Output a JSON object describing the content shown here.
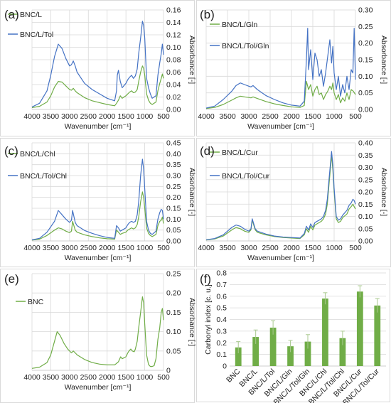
{
  "colors": {
    "green": "#70ad47",
    "blue": "#4472c4",
    "grid": "#d9d9d9"
  },
  "chart_data": [
    {
      "type": "line",
      "panel_label": "(a)",
      "xlabel": "Wavenumber [cm⁻¹]",
      "ylabel": "Absorbance [-]",
      "xlim": [
        4000,
        500
      ],
      "ylim": [
        0,
        0.16
      ],
      "xticks": [
        "4000",
        "3500",
        "3000",
        "2500",
        "2000",
        "1500",
        "1000",
        "500"
      ],
      "yticks": [
        "0.00",
        "0.02",
        "0.04",
        "0.06",
        "0.08",
        "0.10",
        "0.12",
        "0.14",
        "0.16"
      ],
      "series": [
        {
          "name": "BNC/L",
          "color": "#70ad47",
          "x": [
            4000,
            3800,
            3600,
            3500,
            3400,
            3300,
            3200,
            3100,
            3000,
            2950,
            2900,
            2850,
            2800,
            2600,
            2400,
            2200,
            2000,
            1800,
            1750,
            1700,
            1650,
            1600,
            1500,
            1450,
            1400,
            1350,
            1300,
            1250,
            1200,
            1160,
            1110,
            1060,
            1030,
            1000,
            950,
            900,
            850,
            800,
            700,
            650,
            600,
            560,
            530,
            500
          ],
          "y": [
            0.003,
            0.005,
            0.012,
            0.022,
            0.036,
            0.045,
            0.044,
            0.038,
            0.032,
            0.031,
            0.034,
            0.03,
            0.027,
            0.019,
            0.014,
            0.011,
            0.008,
            0.006,
            0.01,
            0.015,
            0.022,
            0.018,
            0.022,
            0.025,
            0.028,
            0.03,
            0.027,
            0.028,
            0.032,
            0.045,
            0.06,
            0.07,
            0.066,
            0.055,
            0.025,
            0.015,
            0.01,
            0.008,
            0.012,
            0.03,
            0.042,
            0.05,
            0.057,
            0.05
          ]
        },
        {
          "name": "BNC/L/Tol",
          "color": "#4472c4",
          "x": [
            4000,
            3800,
            3600,
            3500,
            3400,
            3300,
            3200,
            3100,
            3000,
            2950,
            2900,
            2850,
            2800,
            2600,
            2400,
            2200,
            2000,
            1800,
            1750,
            1730,
            1700,
            1650,
            1600,
            1500,
            1450,
            1400,
            1350,
            1300,
            1250,
            1200,
            1160,
            1110,
            1060,
            1030,
            1000,
            950,
            900,
            850,
            800,
            700,
            650,
            600,
            560,
            530,
            500
          ],
          "y": [
            0.004,
            0.01,
            0.03,
            0.055,
            0.085,
            0.105,
            0.098,
            0.082,
            0.07,
            0.072,
            0.078,
            0.07,
            0.06,
            0.042,
            0.032,
            0.025,
            0.018,
            0.014,
            0.03,
            0.055,
            0.063,
            0.045,
            0.035,
            0.042,
            0.048,
            0.052,
            0.055,
            0.05,
            0.054,
            0.065,
            0.09,
            0.115,
            0.142,
            0.135,
            0.115,
            0.05,
            0.035,
            0.025,
            0.018,
            0.022,
            0.055,
            0.075,
            0.09,
            0.105,
            0.088
          ]
        }
      ]
    },
    {
      "type": "line",
      "panel_label": "(b)",
      "xlabel": "Wavenumber [cm⁻¹]",
      "ylabel": "Absorbance [-]",
      "xlim": [
        4000,
        500
      ],
      "ylim": [
        0,
        0.3
      ],
      "xticks": [
        "4000",
        "3500",
        "3000",
        "2500",
        "2000",
        "1500",
        "1000",
        "500"
      ],
      "yticks": [
        "0.00",
        "0.05",
        "0.10",
        "0.15",
        "0.20",
        "0.25",
        "0.30"
      ],
      "series": [
        {
          "name": "BNC/L/Gln",
          "color": "#70ad47",
          "x": [
            4000,
            3800,
            3600,
            3400,
            3300,
            3200,
            3100,
            3000,
            2950,
            2900,
            2800,
            2600,
            2400,
            2200,
            2000,
            1800,
            1700,
            1650,
            1600,
            1550,
            1500,
            1450,
            1400,
            1350,
            1300,
            1250,
            1200,
            1150,
            1100,
            1060,
            1030,
            1000,
            950,
            900,
            850,
            800,
            750,
            700,
            650,
            600,
            550,
            500
          ],
          "y": [
            0.003,
            0.006,
            0.015,
            0.028,
            0.035,
            0.04,
            0.038,
            0.036,
            0.035,
            0.038,
            0.033,
            0.024,
            0.017,
            0.012,
            0.008,
            0.006,
            0.012,
            0.085,
            0.06,
            0.075,
            0.04,
            0.06,
            0.07,
            0.045,
            0.05,
            0.03,
            0.045,
            0.055,
            0.07,
            0.06,
            0.08,
            0.05,
            0.03,
            0.045,
            0.02,
            0.035,
            0.025,
            0.05,
            0.03,
            0.06,
            0.055,
            0.045
          ]
        },
        {
          "name": "BNC/L/Tol/Gln",
          "color": "#4472c4",
          "x": [
            4000,
            3800,
            3600,
            3400,
            3300,
            3200,
            3100,
            3000,
            2950,
            2900,
            2800,
            2600,
            2400,
            2200,
            2000,
            1800,
            1700,
            1650,
            1620,
            1600,
            1550,
            1500,
            1450,
            1400,
            1350,
            1300,
            1250,
            1200,
            1150,
            1100,
            1060,
            1030,
            1000,
            950,
            900,
            850,
            800,
            750,
            700,
            650,
            600,
            560,
            530,
            500
          ],
          "y": [
            0.004,
            0.01,
            0.03,
            0.055,
            0.072,
            0.08,
            0.075,
            0.07,
            0.068,
            0.072,
            0.06,
            0.042,
            0.03,
            0.02,
            0.013,
            0.01,
            0.025,
            0.15,
            0.245,
            0.12,
            0.18,
            0.09,
            0.17,
            0.15,
            0.1,
            0.12,
            0.07,
            0.11,
            0.16,
            0.21,
            0.14,
            0.19,
            0.11,
            0.06,
            0.1,
            0.04,
            0.075,
            0.05,
            0.1,
            0.06,
            0.12,
            0.11,
            0.245,
            0.09
          ]
        }
      ]
    },
    {
      "type": "line",
      "panel_label": "(c)",
      "xlabel": "Wavenumber [cm⁻¹]",
      "ylabel": "Absorbance [-]",
      "xlim": [
        4000,
        500
      ],
      "ylim": [
        0,
        0.45
      ],
      "xticks": [
        "4000",
        "3500",
        "3000",
        "2500",
        "2000",
        "1500",
        "1000",
        "500"
      ],
      "yticks": [
        "0.00",
        "0.05",
        "0.10",
        "0.15",
        "0.20",
        "0.25",
        "0.30",
        "0.35",
        "0.40",
        "0.45"
      ],
      "series": [
        {
          "name": "BNC/L/Chl",
          "color": "#70ad47",
          "x": [
            4000,
            3800,
            3600,
            3400,
            3300,
            3200,
            3100,
            3000,
            2950,
            2920,
            2850,
            2800,
            2600,
            2400,
            2200,
            2000,
            1800,
            1750,
            1700,
            1650,
            1600,
            1500,
            1450,
            1400,
            1350,
            1300,
            1250,
            1200,
            1160,
            1110,
            1060,
            1030,
            1000,
            950,
            900,
            850,
            800,
            700,
            650,
            600,
            560,
            530,
            500
          ],
          "y": [
            0.004,
            0.008,
            0.025,
            0.05,
            0.06,
            0.055,
            0.045,
            0.038,
            0.045,
            0.09,
            0.05,
            0.04,
            0.028,
            0.02,
            0.014,
            0.01,
            0.008,
            0.05,
            0.04,
            0.03,
            0.035,
            0.04,
            0.05,
            0.055,
            0.06,
            0.055,
            0.06,
            0.075,
            0.11,
            0.18,
            0.225,
            0.2,
            0.15,
            0.06,
            0.035,
            0.025,
            0.02,
            0.03,
            0.07,
            0.09,
            0.095,
            0.11,
            0.08
          ]
        },
        {
          "name": "BNC/L/Tol/Chl",
          "color": "#4472c4",
          "x": [
            4000,
            3800,
            3600,
            3400,
            3300,
            3200,
            3100,
            3000,
            2950,
            2920,
            2850,
            2800,
            2600,
            2400,
            2200,
            2000,
            1800,
            1750,
            1700,
            1650,
            1600,
            1500,
            1450,
            1400,
            1350,
            1300,
            1250,
            1200,
            1160,
            1110,
            1060,
            1030,
            1000,
            950,
            900,
            850,
            800,
            700,
            650,
            600,
            560,
            530,
            500
          ],
          "y": [
            0.005,
            0.012,
            0.04,
            0.09,
            0.14,
            0.12,
            0.1,
            0.085,
            0.095,
            0.14,
            0.085,
            0.07,
            0.048,
            0.035,
            0.024,
            0.016,
            0.012,
            0.07,
            0.06,
            0.045,
            0.05,
            0.06,
            0.075,
            0.085,
            0.09,
            0.085,
            0.09,
            0.12,
            0.18,
            0.3,
            0.375,
            0.33,
            0.24,
            0.09,
            0.05,
            0.035,
            0.03,
            0.045,
            0.1,
            0.13,
            0.145,
            0.14,
            0.1
          ]
        }
      ]
    },
    {
      "type": "line",
      "panel_label": "(d)",
      "xlabel": "Wavenumber [cm⁻¹]",
      "ylabel": "Absorbance [-]",
      "xlim": [
        4000,
        500
      ],
      "ylim": [
        0,
        0.4
      ],
      "xticks": [
        "4000",
        "3500",
        "3000",
        "2500",
        "2000",
        "1500",
        "1000",
        "500"
      ],
      "yticks": [
        "0.00",
        "0.05",
        "0.10",
        "0.15",
        "0.20",
        "0.25",
        "0.30",
        "0.35",
        "0.40"
      ],
      "series": [
        {
          "name": "BNC/L/Cur",
          "color": "#70ad47",
          "x": [
            4000,
            3800,
            3600,
            3400,
            3300,
            3200,
            3100,
            3000,
            2950,
            2920,
            2850,
            2800,
            2600,
            2400,
            2200,
            2000,
            1800,
            1700,
            1650,
            1600,
            1550,
            1500,
            1450,
            1400,
            1350,
            1300,
            1250,
            1200,
            1160,
            1110,
            1060,
            1030,
            1000,
            950,
            900,
            850,
            800,
            700,
            650,
            600,
            560,
            530,
            500
          ],
          "y": [
            0.004,
            0.008,
            0.02,
            0.045,
            0.055,
            0.05,
            0.04,
            0.035,
            0.045,
            0.085,
            0.045,
            0.035,
            0.025,
            0.018,
            0.014,
            0.012,
            0.01,
            0.025,
            0.05,
            0.035,
            0.06,
            0.045,
            0.065,
            0.07,
            0.075,
            0.08,
            0.09,
            0.11,
            0.15,
            0.25,
            0.35,
            0.29,
            0.2,
            0.09,
            0.075,
            0.08,
            0.095,
            0.11,
            0.13,
            0.14,
            0.15,
            0.14,
            0.13
          ]
        },
        {
          "name": "BNC/L/Tol/Cur",
          "color": "#4472c4",
          "x": [
            4000,
            3800,
            3600,
            3400,
            3300,
            3200,
            3100,
            3000,
            2950,
            2920,
            2850,
            2800,
            2600,
            2400,
            2200,
            2000,
            1800,
            1700,
            1650,
            1600,
            1550,
            1500,
            1450,
            1400,
            1350,
            1300,
            1250,
            1200,
            1160,
            1110,
            1060,
            1030,
            1000,
            950,
            900,
            850,
            800,
            700,
            650,
            600,
            560,
            530,
            500
          ],
          "y": [
            0.005,
            0.01,
            0.025,
            0.055,
            0.065,
            0.06,
            0.048,
            0.04,
            0.05,
            0.09,
            0.05,
            0.04,
            0.028,
            0.02,
            0.016,
            0.014,
            0.012,
            0.03,
            0.06,
            0.045,
            0.07,
            0.055,
            0.075,
            0.08,
            0.085,
            0.09,
            0.1,
            0.125,
            0.17,
            0.27,
            0.365,
            0.31,
            0.215,
            0.1,
            0.085,
            0.09,
            0.105,
            0.125,
            0.145,
            0.155,
            0.17,
            0.165,
            0.15
          ]
        }
      ]
    },
    {
      "type": "line",
      "panel_label": "(e)",
      "xlabel": "Wavenumber [cm⁻¹]",
      "ylabel": "Absorbance [-]",
      "xlim": [
        4000,
        500
      ],
      "ylim": [
        0,
        0.25
      ],
      "xticks": [
        "4000",
        "3500",
        "3000",
        "2500",
        "2000",
        "1500",
        "1000",
        "500"
      ],
      "yticks": [
        "0",
        "0.05",
        "0.10",
        "0.15",
        "0.20",
        "0.25"
      ],
      "series": [
        {
          "name": "BNC",
          "color": "#70ad47",
          "x": [
            4000,
            3800,
            3600,
            3500,
            3400,
            3330,
            3250,
            3150,
            3050,
            2950,
            2900,
            2850,
            2800,
            2600,
            2400,
            2200,
            2000,
            1800,
            1700,
            1640,
            1600,
            1500,
            1450,
            1420,
            1370,
            1330,
            1280,
            1250,
            1200,
            1160,
            1110,
            1060,
            1030,
            1000,
            950,
            900,
            850,
            800,
            750,
            700,
            650,
            600,
            560,
            530,
            500
          ],
          "y": [
            0.005,
            0.008,
            0.02,
            0.04,
            0.075,
            0.1,
            0.09,
            0.07,
            0.055,
            0.045,
            0.05,
            0.045,
            0.04,
            0.028,
            0.02,
            0.016,
            0.014,
            0.014,
            0.022,
            0.035,
            0.03,
            0.035,
            0.045,
            0.05,
            0.055,
            0.05,
            0.048,
            0.055,
            0.075,
            0.11,
            0.15,
            0.19,
            0.175,
            0.12,
            0.04,
            0.015,
            0.01,
            0.01,
            0.012,
            0.03,
            0.08,
            0.11,
            0.15,
            0.16,
            0.13
          ]
        }
      ]
    },
    {
      "type": "bar",
      "panel_label": "(f)",
      "ylabel": "Carbonyl index [c. u.]",
      "ylim": [
        0,
        0.8
      ],
      "yticks": [
        "0",
        "0.1",
        "0.2",
        "0.3",
        "0.4",
        "0.5",
        "0.6",
        "0.7",
        "0.8"
      ],
      "categories": [
        "BNC",
        "BNC/L",
        "BNC/L/Tol",
        "BNC/L/Gln",
        "BNC/L/Tol/Gln",
        "BNC/L/Chl",
        "BNC/L/Tol/Chl",
        "BNC/L/Cur",
        "BNC/L/Tol/Cur"
      ],
      "values": [
        0.16,
        0.25,
        0.33,
        0.17,
        0.21,
        0.58,
        0.24,
        0.64,
        0.52
      ],
      "errors": [
        0.05,
        0.06,
        0.06,
        0.05,
        0.06,
        0.05,
        0.06,
        0.05,
        0.06
      ],
      "color": "#70ad47"
    }
  ]
}
